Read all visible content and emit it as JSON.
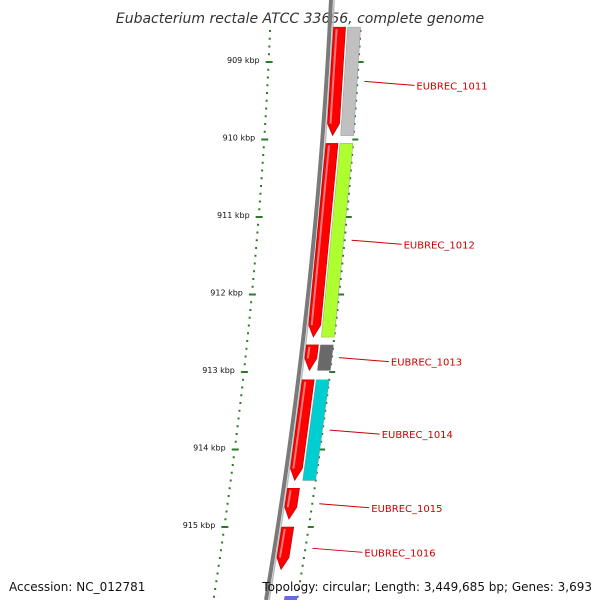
{
  "title": "Eubacterium rectale ATCC 33656, complete genome",
  "accession_label": "Accession: NC_012781",
  "topology_label": "Topology: circular; Length: 3,449,685 bp; Genes: 3,693",
  "colors": {
    "backbone": "#7a7a7a",
    "tick": "#2a7a2a",
    "label": "#cc0000",
    "forward_gene": "#ff0000"
  },
  "kbp_ticks": [
    {
      "kbp": 909,
      "label": "909 kbp"
    },
    {
      "kbp": 910,
      "label": "910 kbp"
    },
    {
      "kbp": 911,
      "label": "911 kbp"
    },
    {
      "kbp": 912,
      "label": "912 kbp"
    },
    {
      "kbp": 913,
      "label": "913 kbp"
    },
    {
      "kbp": 914,
      "label": "914 kbp"
    },
    {
      "kbp": 915,
      "label": "915 kbp"
    }
  ],
  "genes": [
    {
      "name": "EUBREC_1011",
      "start_kbp": 908.55,
      "end_kbp": 909.95,
      "cog_color": "#c0c0c0"
    },
    {
      "name": "EUBREC_1012",
      "start_kbp": 910.05,
      "end_kbp": 912.55,
      "cog_color": "#adff2f"
    },
    {
      "name": "EUBREC_1013",
      "start_kbp": 912.65,
      "end_kbp": 912.98,
      "cog_color": "#696969"
    },
    {
      "name": "EUBREC_1014",
      "start_kbp": 913.1,
      "end_kbp": 914.4,
      "cog_color": "#00ced1"
    },
    {
      "name": "EUBREC_1015",
      "start_kbp": 914.5,
      "end_kbp": 914.9,
      "cog_color": null
    },
    {
      "name": "EUBREC_1016",
      "start_kbp": 915.0,
      "end_kbp": 915.55,
      "cog_color": null
    }
  ]
}
